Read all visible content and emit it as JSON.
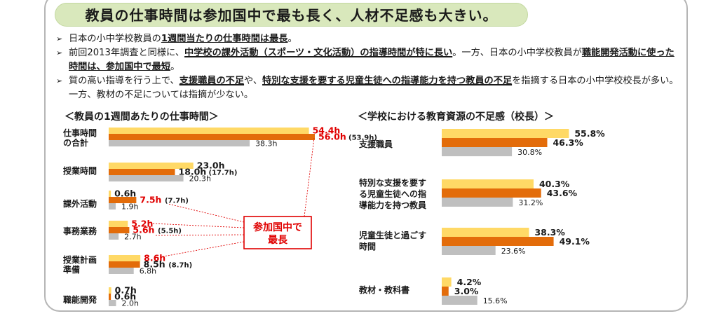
{
  "title": "教員の仕事時間は参加国中で最も長く、人材不足感も大きい。",
  "bullet_marker": "➢",
  "bullets": [
    {
      "t1": "日本の小中学校教員の",
      "h1": "1週間当たりの仕事時間は最長",
      "t2": "。",
      "h2": "",
      "t3": "",
      "h3": "",
      "t4": ""
    },
    {
      "t1": "前回2013年調査と同様に、",
      "h1": "中学校の課外活動（スポーツ・文化活動）の指導時間が特に長い",
      "t2": "。一方、日本の小中学校教員が",
      "h2": "職能開発活動に使った時間は、参加国中で最短",
      "t3": "。",
      "h3": "",
      "t4": ""
    },
    {
      "t1": "質の高い指導を行う上で、",
      "h1": "支援職員の不足",
      "t2": "や、",
      "h2": "特別な支援を要する児童生徒への指導能力を持つ教員の不足",
      "t3": "を指摘する日本の小中学校校長が多い。一方、教材の不足については指摘が少ない。",
      "h3": "",
      "t4": ""
    }
  ],
  "left_title": "＜教員の1週間あたりの仕事時間＞",
  "right_title": "＜学校における教育資源の不足感（校長）＞",
  "callout": {
    "line1": "参加国中で",
    "line2": "最長"
  },
  "colors": {
    "elementary": "#ffd966",
    "junior_high": "#e36c0a",
    "average": "#bfbfbf",
    "highlight": "#e00000"
  },
  "chart_data": [
    {
      "type": "bar",
      "title": "＜教員の1週間あたりの仕事時間＞",
      "orientation": "horizontal",
      "categories": [
        {
          "lines": [
            "仕事時間",
            "の合計"
          ]
        },
        {
          "lines": [
            "授業時間"
          ]
        },
        {
          "lines": [
            "課外活動"
          ]
        },
        {
          "lines": [
            "事務業務"
          ]
        },
        {
          "lines": [
            "授業計画",
            "準備"
          ]
        },
        {
          "lines": [
            "職能開発"
          ]
        }
      ],
      "series": [
        {
          "key": "elementary",
          "values": [
            54.4,
            23.0,
            0.6,
            5.2,
            8.6,
            0.7
          ],
          "labels": [
            "54.4h",
            "23.0h",
            "0.6h",
            "5.2h",
            "8.6h",
            "0.7h"
          ],
          "red": [
            true,
            false,
            false,
            true,
            true,
            false
          ]
        },
        {
          "key": "junior_high",
          "values": [
            56.0,
            18.0,
            7.5,
            5.6,
            8.5,
            0.6
          ],
          "labels": [
            "56.0h",
            "18.0h",
            "7.5h",
            "5.6h",
            "8.5h",
            "0.6h"
          ],
          "red": [
            true,
            false,
            true,
            true,
            false,
            false
          ],
          "notes": [
            "(53.9h)",
            "(17.7h)",
            "(7.7h)",
            "(5.5h)",
            "(8.7h)",
            ""
          ]
        },
        {
          "key": "average",
          "values": [
            38.3,
            20.3,
            1.9,
            2.7,
            6.8,
            2.0
          ],
          "labels": [
            "38.3h",
            "20.3h",
            "1.9h",
            "2.7h",
            "6.8h",
            "2.0h"
          ],
          "red": [
            false,
            false,
            false,
            false,
            false,
            false
          ]
        }
      ]
    },
    {
      "type": "bar",
      "title": "＜学校における教育資源の不足感（校長）＞",
      "orientation": "horizontal",
      "categories": [
        {
          "lines": [
            "支援職員"
          ]
        },
        {
          "lines": [
            "特別な支援を要す",
            "る児童生徒への指",
            "導能力を持つ教員"
          ]
        },
        {
          "lines": [
            "児童生徒と過ごす",
            "時間"
          ]
        },
        {
          "lines": [
            "教材・教科書"
          ]
        }
      ],
      "series": [
        {
          "key": "elementary",
          "values": [
            55.8,
            40.3,
            38.3,
            4.2
          ],
          "labels": [
            "55.8%",
            "40.3%",
            "38.3%",
            "4.2%"
          ]
        },
        {
          "key": "junior_high",
          "values": [
            46.3,
            43.6,
            49.1,
            3.0
          ],
          "labels": [
            "46.3%",
            "43.6%",
            "49.1%",
            "3.0%"
          ]
        },
        {
          "key": "average",
          "values": [
            30.8,
            31.2,
            23.6,
            15.6
          ],
          "labels": [
            "30.8%",
            "31.2%",
            "23.6%",
            "15.6%"
          ]
        }
      ]
    }
  ]
}
